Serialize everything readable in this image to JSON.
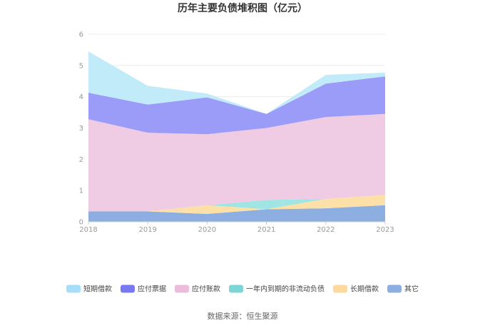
{
  "chart_data": {
    "type": "area",
    "stacked": true,
    "title": "历年主要负债堆积图（亿元）",
    "categories": [
      "2018",
      "2019",
      "2020",
      "2021",
      "2022",
      "2023"
    ],
    "ylim": [
      0,
      6
    ],
    "yticks": [
      0,
      1,
      2,
      3,
      4,
      5,
      6
    ],
    "grid": true,
    "legend_position": "bottom",
    "series": [
      {
        "name": "其它",
        "color": "#8daee0",
        "values": [
          0.33,
          0.33,
          0.25,
          0.4,
          0.43,
          0.53
        ]
      },
      {
        "name": "长期借款",
        "color": "#fde0a8",
        "values": [
          0.0,
          0.0,
          0.28,
          0.0,
          0.3,
          0.33
        ]
      },
      {
        "name": "一年内到期的非流动负债",
        "color": "#a0e4e3",
        "values": [
          0.0,
          0.0,
          0.0,
          0.3,
          0.0,
          0.0
        ]
      },
      {
        "name": "应付账款",
        "color": "#efcce4",
        "values": [
          2.95,
          2.52,
          2.27,
          2.3,
          2.62,
          2.59
        ]
      },
      {
        "name": "应付票据",
        "color": "#9b9cf7",
        "values": [
          0.85,
          0.9,
          1.18,
          0.45,
          1.07,
          1.2
        ]
      },
      {
        "name": "短期借款",
        "color": "#c2ebfa",
        "values": [
          1.32,
          0.6,
          0.12,
          0.0,
          0.28,
          0.12
        ]
      }
    ],
    "legend_order": [
      "短期借款",
      "应付票据",
      "应付账款",
      "一年内到期的非流动负债",
      "长期借款",
      "其它"
    ],
    "legend_swatch_colors": {
      "短期借款": "#a5def8",
      "应付票据": "#7878f0",
      "应付账款": "#ecbcdd",
      "一年内到期的非流动负债": "#7dd6d5",
      "长期借款": "#fdd9a0",
      "其它": "#8daee0"
    }
  },
  "source_text": "数据来源：恒生聚源"
}
